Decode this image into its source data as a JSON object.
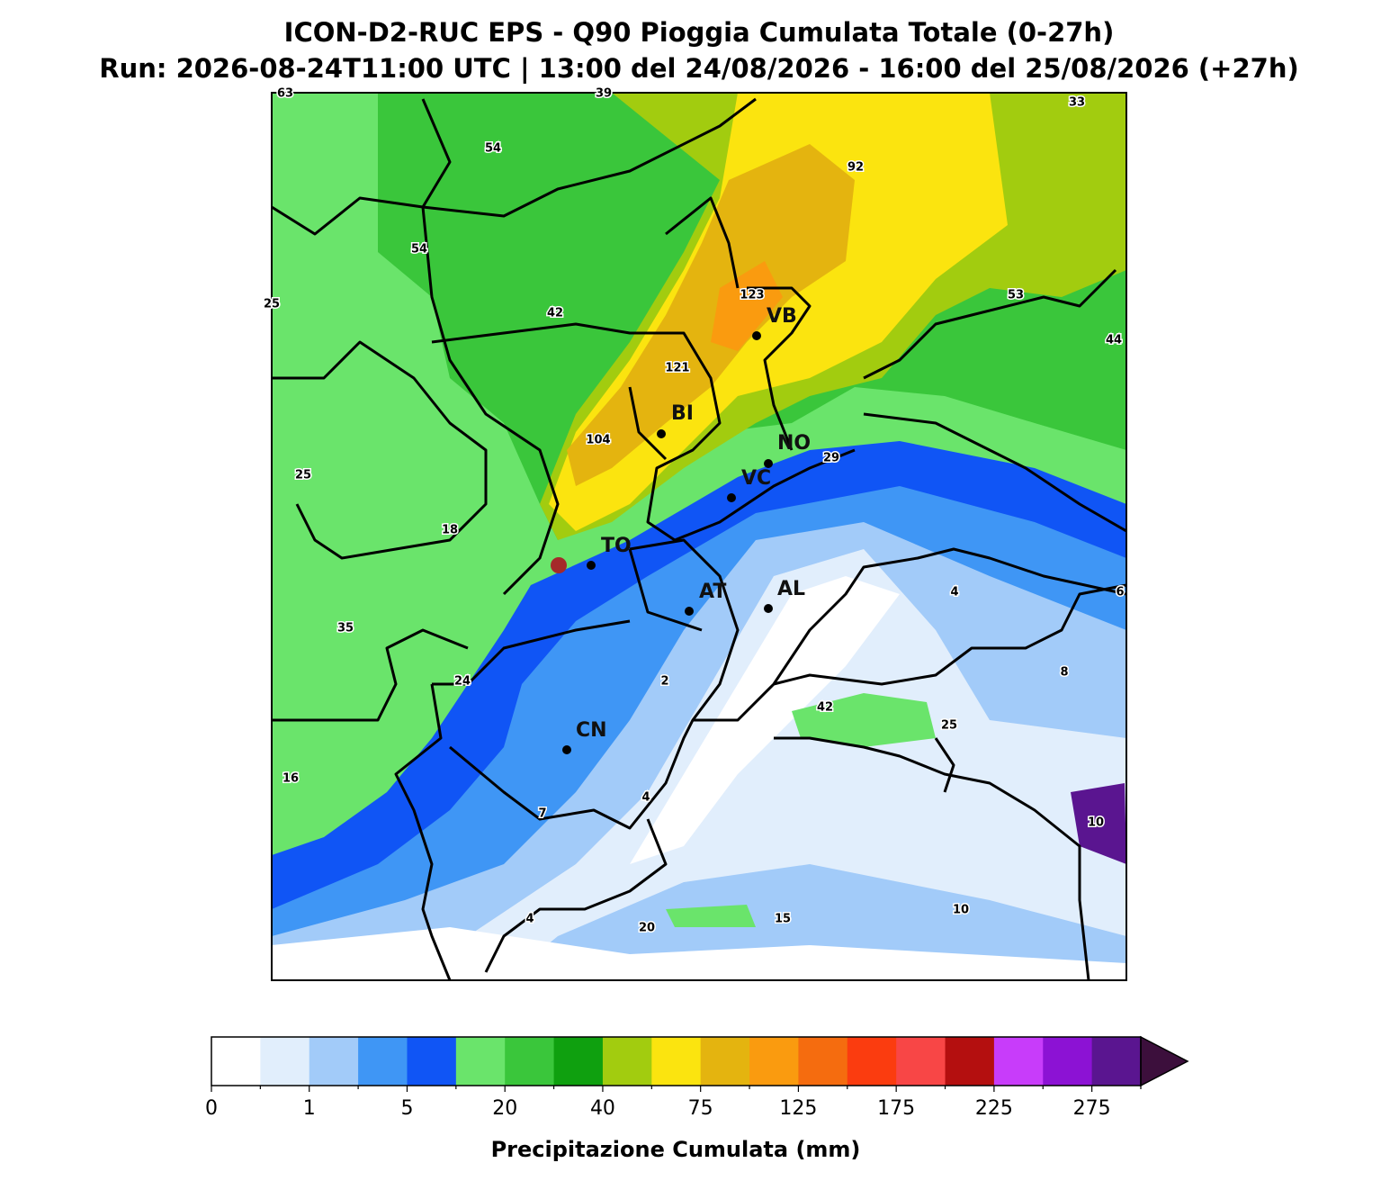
{
  "title": "ICON-D2-RUC EPS - Q90 Pioggia Cumulata Totale (0-27h)",
  "subtitle": "Run: 2026-08-24T11:00 UTC | 13:00 del 24/08/2026 - 16:00 del 25/08/2026 (+27h)",
  "cities": [
    "VB",
    "BI",
    "NO",
    "VC",
    "TO",
    "AT",
    "AL",
    "CN"
  ],
  "contour_labels": [
    63,
    39,
    33,
    54,
    92,
    54,
    25,
    123,
    42,
    53,
    44,
    121,
    104,
    29,
    25,
    18,
    35,
    4,
    6,
    24,
    2,
    8,
    42,
    25,
    16,
    4,
    10,
    7,
    4,
    20,
    15,
    10
  ],
  "colorbar": {
    "label": "Precipitazione Cumulata (mm)",
    "ticks": [
      0,
      1,
      5,
      20,
      40,
      75,
      125,
      175,
      225,
      275
    ],
    "colors": [
      "#ffffff",
      "#e1eefc",
      "#a2cbf9",
      "#3f96f5",
      "#1055f5",
      "#6ae46b",
      "#3ac63b",
      "#0fa00f",
      "#a2cc0f",
      "#fbe40f",
      "#e4b40f",
      "#fa9b0f",
      "#f56c0f",
      "#fb3c0f",
      "#f84646",
      "#b40f0f",
      "#c83cfa",
      "#8c12d4",
      "#5a1590"
    ],
    "extend_color": "#3c0f3c"
  }
}
